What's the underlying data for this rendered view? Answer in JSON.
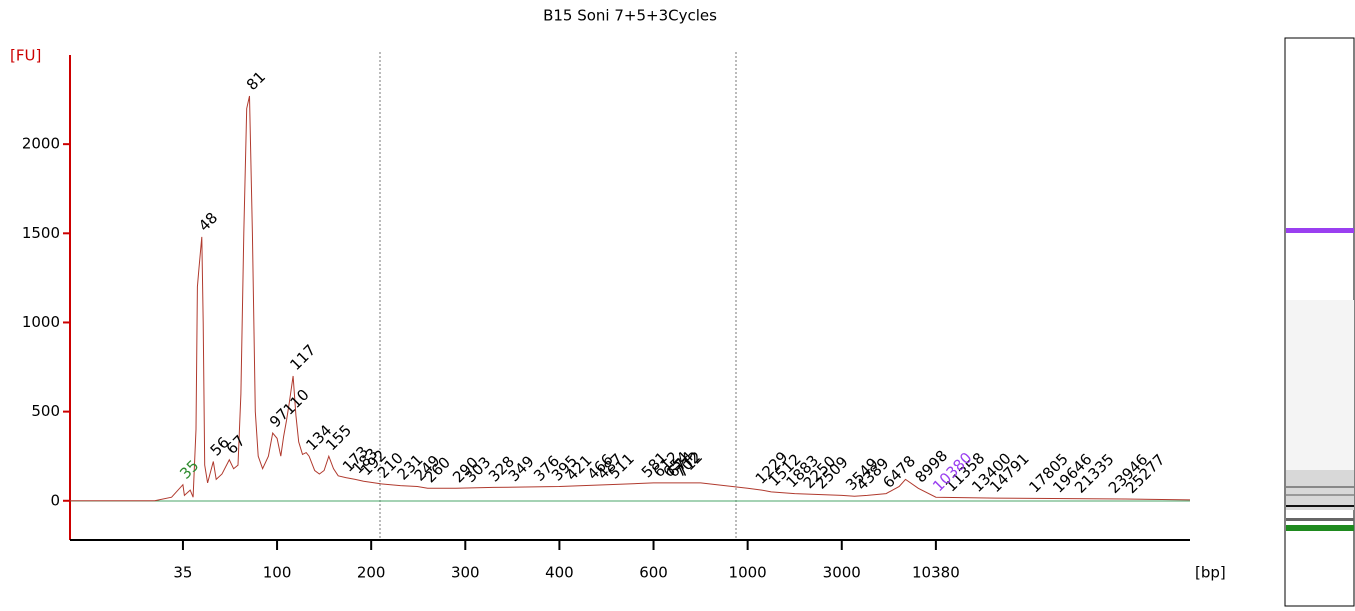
{
  "chart_data": {
    "type": "line",
    "title": "B15 Soni 7+5+3Cycles",
    "y_label": "[FU]",
    "x_label": "[bp]",
    "color": "#b03a2e",
    "axis_color": "#cc0000",
    "xlim": [
      15,
      30000
    ],
    "xticks": [
      35,
      100,
      200,
      300,
      400,
      600,
      1000,
      3000,
      10380
    ],
    "ylim": [
      -220,
      2500
    ],
    "yticks": [
      0,
      500,
      1000,
      1500,
      2000
    ],
    "x": [
      15,
      30,
      33,
      35,
      36,
      40,
      42,
      44,
      45,
      46,
      48,
      49,
      50,
      52,
      56,
      58,
      62,
      67,
      70,
      73,
      75,
      77,
      79,
      81,
      83,
      85,
      87,
      90,
      94,
      97,
      100,
      104,
      107,
      110,
      113,
      117,
      120,
      123,
      127,
      131,
      134,
      140,
      145,
      150,
      155,
      160,
      165,
      173,
      183,
      192,
      210,
      231,
      249,
      260,
      290,
      330,
      400,
      500,
      600,
      800,
      1000,
      1300,
      1500,
      2000,
      3000,
      4000,
      5000,
      6478,
      7500,
      8000,
      8998,
      10380,
      15000,
      25000,
      30000
    ],
    "values": [
      0,
      0,
      20,
      90,
      30,
      60,
      20,
      400,
      1200,
      1300,
      1480,
      1000,
      200,
      100,
      220,
      120,
      150,
      230,
      180,
      200,
      600,
      1500,
      2200,
      2270,
      1500,
      500,
      250,
      180,
      250,
      380,
      350,
      250,
      360,
      450,
      550,
      700,
      480,
      330,
      260,
      270,
      250,
      170,
      150,
      170,
      250,
      180,
      140,
      130,
      120,
      110,
      95,
      85,
      80,
      70,
      70,
      75,
      80,
      90,
      100,
      100,
      70,
      60,
      50,
      40,
      30,
      25,
      30,
      40,
      80,
      120,
      70,
      20,
      15,
      10,
      5
    ],
    "lower_marker": 35,
    "lower_marker_color": "#2e8b2e",
    "upper_marker": 10380,
    "upper_marker_color": "#9a3ff0",
    "peaks": [
      48,
      56,
      67,
      81,
      97,
      110,
      117,
      134,
      155,
      173,
      183,
      192,
      210,
      231,
      249,
      260,
      290,
      303,
      328,
      349,
      376,
      395,
      421,
      466,
      487,
      511,
      581,
      612,
      654,
      674,
      702,
      712,
      1229,
      1512,
      1883,
      2250,
      2509,
      3549,
      4389,
      6478,
      8998,
      11358,
      13400,
      14791,
      17805,
      19646,
      21335,
      23946,
      25277
    ]
  }
}
